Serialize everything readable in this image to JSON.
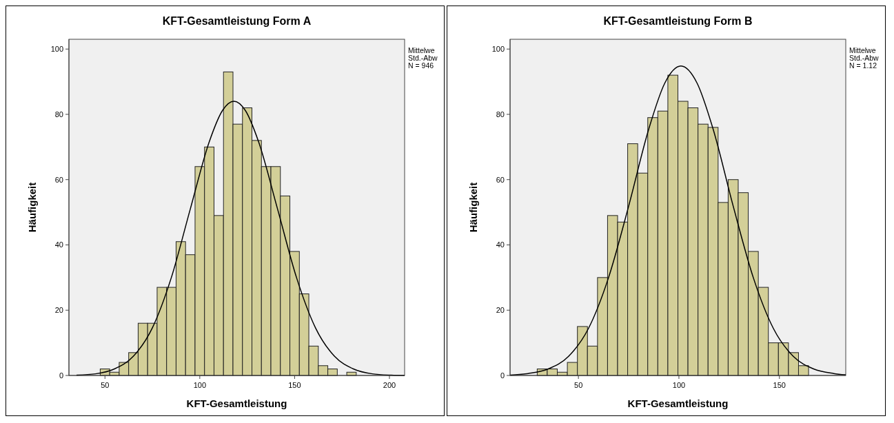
{
  "chart_data": [
    {
      "type": "histogram",
      "title": "KFT-Gesamtleistung Form A",
      "xlabel": "KFT-Gesamtleistung",
      "ylabel": "Häufigkeit",
      "color": "#d3cf98",
      "bins": [
        47.5,
        52.5,
        57.5,
        62.5,
        67.5,
        72.5,
        77.5,
        82.5,
        87.5,
        92.5,
        97.5,
        102.5,
        107.5,
        112.5,
        117.5,
        122.5,
        127.5,
        132.5,
        137.5,
        142.5,
        147.5,
        152.5,
        157.5,
        162.5,
        167.5,
        172.5,
        177.5,
        182.5
      ],
      "values": [
        2,
        1,
        4,
        7,
        16,
        16,
        27,
        27,
        41,
        37,
        64,
        70,
        49,
        93,
        77,
        82,
        72,
        64,
        64,
        55,
        38,
        25,
        9,
        3,
        2,
        0,
        1
      ],
      "series": [
        {
          "type": "line",
          "color": "#000000",
          "x": [
            35,
            45,
            55,
            65,
            75,
            85,
            95,
            105,
            112,
            118,
            124,
            131,
            141,
            151,
            161,
            171,
            181,
            191,
            201,
            208
          ],
          "values": [
            0.1,
            0.5,
            2.0,
            5.9,
            14.6,
            30.0,
            51.0,
            71.6,
            81.2,
            84,
            81.2,
            71.6,
            51.0,
            30.0,
            14.6,
            5.9,
            2.0,
            0.5,
            0.1,
            0.0
          ]
        }
      ],
      "xlim": [
        31,
        208
      ],
      "ylim": [
        0,
        103
      ],
      "xticks": [
        50,
        100,
        150,
        200
      ],
      "yticks": [
        0,
        20,
        40,
        60,
        80,
        100
      ],
      "grid": false,
      "annotations": [
        "Mittelwe",
        "Std.-Abw",
        "N = 946"
      ]
    },
    {
      "type": "histogram",
      "title": "KFT-Gesamtleistung Form B",
      "xlabel": "KFT-Gesamtleistung",
      "ylabel": "Häufigkeit",
      "color": "#d3cf98",
      "bins": [
        29.5,
        34.5,
        39.5,
        44.5,
        49.5,
        54.5,
        59.5,
        64.5,
        69.5,
        74.5,
        79.5,
        84.5,
        89.5,
        94.5,
        99.5,
        104.5,
        109.5,
        114.5,
        119.5,
        124.5,
        129.5,
        134.5,
        139.5,
        144.5,
        149.5,
        154.5,
        159.5,
        164.5
      ],
      "values": [
        2,
        2,
        1,
        4,
        15,
        9,
        30,
        49,
        47,
        71,
        62,
        79,
        81,
        92,
        84,
        82,
        77,
        76,
        53,
        60,
        56,
        38,
        27,
        10,
        10,
        7,
        3
      ],
      "series": [
        {
          "type": "line",
          "color": "#000000",
          "x": [
            16,
            25,
            35,
            45,
            55,
            65,
            75,
            85,
            93,
            101,
            109,
            117,
            127,
            137,
            147,
            157,
            167,
            177,
            183
          ],
          "values": [
            0.1,
            0.6,
            2.0,
            5.8,
            14.4,
            30.0,
            51.9,
            75.5,
            89.6,
            94.8,
            89.6,
            75.5,
            51.9,
            30.0,
            14.4,
            5.8,
            2.0,
            0.6,
            0.2
          ]
        }
      ],
      "xlim": [
        16,
        183
      ],
      "ylim": [
        0,
        103
      ],
      "xticks": [
        50,
        100,
        150
      ],
      "yticks": [
        0,
        20,
        40,
        60,
        80,
        100
      ],
      "grid": false,
      "annotations": [
        "Mittelwe",
        "Std.-Abw",
        "N = 1.12"
      ]
    }
  ]
}
